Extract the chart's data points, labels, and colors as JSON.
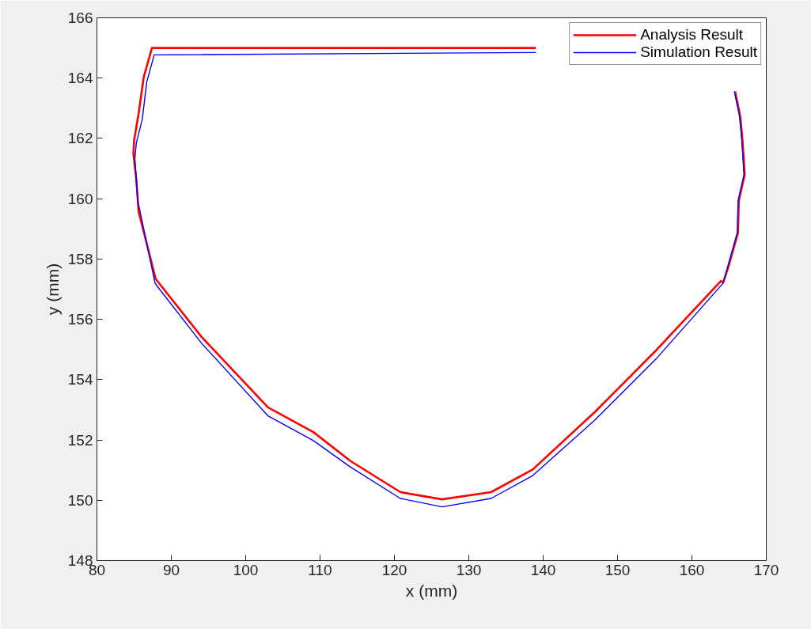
{
  "chart_data": {
    "type": "line",
    "xlabel": "x (mm)",
    "ylabel": "y (mm)",
    "xlim": [
      80,
      170
    ],
    "ylim": [
      148,
      166
    ],
    "xticks": [
      80,
      90,
      100,
      110,
      120,
      130,
      140,
      150,
      160,
      170
    ],
    "yticks": [
      148,
      150,
      152,
      154,
      156,
      158,
      160,
      162,
      164,
      166
    ],
    "legend": "top right",
    "line_style": "solid",
    "marker": "none",
    "series": [
      {
        "name": "Analysis Result",
        "color": "#ff0000",
        "x": [
          165.8,
          166.5,
          166.8,
          167.1,
          166.3,
          166.2,
          164.9,
          164.2,
          163.9,
          155.3,
          147.0,
          138.6,
          133.0,
          126.4,
          120.8,
          114.1,
          109.1,
          103.0,
          94.1,
          87.9,
          85.6,
          85.3,
          84.9,
          85.0,
          85.6,
          86.3,
          87.4,
          139.0
        ],
        "values": [
          163.56,
          162.73,
          161.94,
          160.8,
          159.93,
          158.88,
          157.74,
          157.22,
          157.27,
          155.0,
          152.94,
          151.02,
          150.27,
          150.03,
          150.27,
          151.3,
          152.26,
          153.08,
          155.41,
          157.34,
          159.58,
          160.63,
          161.5,
          161.94,
          162.82,
          164.04,
          165.0,
          165.0
        ]
      },
      {
        "name": "Simulation Result",
        "color": "#0000ff",
        "x": [
          165.7,
          166.4,
          166.7,
          167.0,
          166.2,
          166.1,
          164.8,
          164.2,
          155.3,
          147.0,
          138.6,
          133.0,
          126.4,
          120.8,
          114.1,
          109.1,
          103.0,
          94.1,
          88.0,
          87.8,
          85.5,
          85.1,
          85.3,
          86.1,
          86.7,
          87.7,
          139.0
        ],
        "values": [
          163.56,
          162.73,
          161.94,
          160.8,
          159.93,
          158.88,
          157.74,
          157.2,
          154.72,
          152.67,
          150.82,
          150.06,
          149.78,
          150.06,
          151.1,
          151.98,
          152.8,
          155.2,
          157.13,
          157.22,
          159.93,
          161.33,
          161.85,
          162.64,
          163.87,
          164.77,
          164.85
        ]
      }
    ]
  }
}
